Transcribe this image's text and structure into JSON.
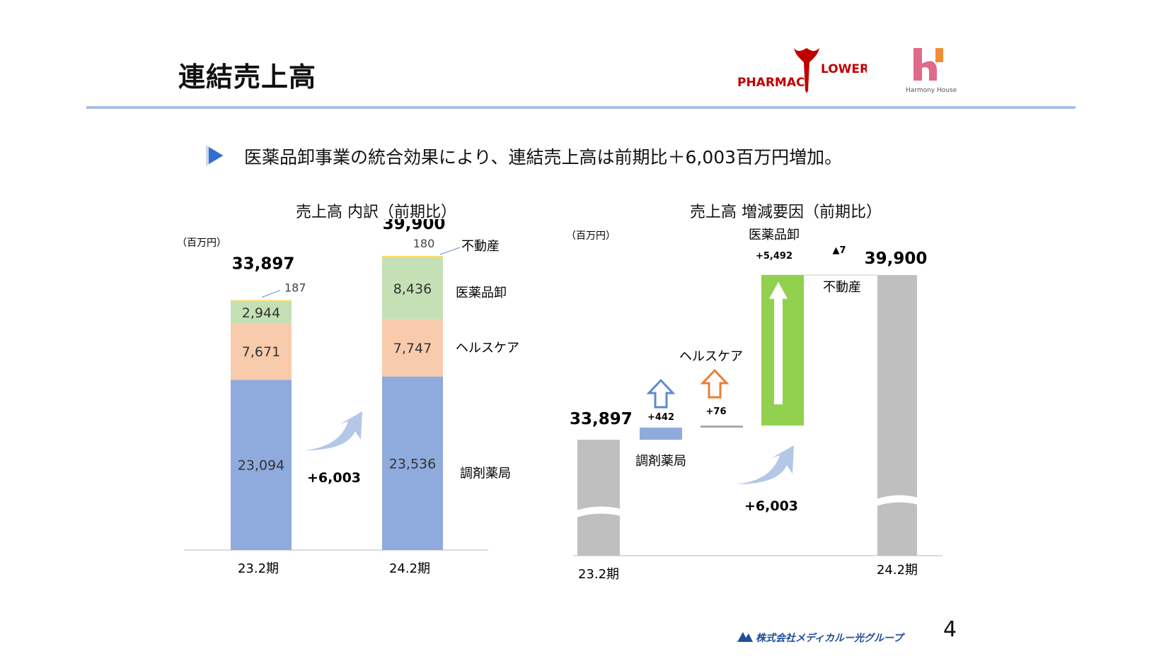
{
  "header": {
    "title": "連結売上高",
    "logo_pharmacy": "PHARMAC",
    "logo_flower": "LOWER",
    "logo_harmony": "Harmony House"
  },
  "lead": "医薬品卸事業の統合効果により、連結売上高は前期比＋6,003百万円増加。",
  "footer": {
    "company": "株式会社メディカルー光グループ",
    "page": "4"
  },
  "colors": {
    "dispensing": "#8faadc",
    "healthcare": "#f8cbad",
    "wholesale": "#c5e0b4",
    "realestate": "#ffd966",
    "wholesale_bar": "#92d050",
    "total": "#bfbfbf",
    "accent_arrow": "#b4c7e7"
  },
  "chart_data": [
    {
      "type": "bar",
      "subtype": "stacked",
      "title": "売上高 内訳（前期比）",
      "unit": "（百万円）",
      "categories": [
        "23.2期",
        "24.2期"
      ],
      "series": [
        {
          "name": "調剤薬局",
          "values": [
            23094,
            23536
          ],
          "labels": [
            "23,094",
            "23,536"
          ]
        },
        {
          "name": "ヘルスケア",
          "values": [
            7671,
            7747
          ],
          "labels": [
            "7,671",
            "7,747"
          ]
        },
        {
          "name": "医薬品卸",
          "values": [
            2944,
            8436
          ],
          "labels": [
            "2,944",
            "8,436"
          ]
        },
        {
          "name": "不動産",
          "values": [
            187,
            180
          ],
          "labels": [
            "187",
            "180"
          ]
        }
      ],
      "totals": [
        33897,
        39900
      ],
      "total_labels": [
        "33,897",
        "39,900"
      ],
      "change_label": "+6,003",
      "ylim": [
        0,
        39900
      ]
    },
    {
      "type": "bar",
      "subtype": "waterfall",
      "title": "売上高 増減要因（前期比）",
      "unit": "（百万円）",
      "start": {
        "category": "23.2期",
        "value": 33897,
        "label": "33,897"
      },
      "end": {
        "category": "24.2期",
        "value": 39900,
        "label": "39,900"
      },
      "steps": [
        {
          "name": "調剤薬局",
          "value": 442,
          "label": "+442"
        },
        {
          "name": "ヘルスケア",
          "value": 76,
          "label": "+76"
        },
        {
          "name": "医薬品卸",
          "value": 5492,
          "label": "+5,492"
        },
        {
          "name": "不動産",
          "value": -7,
          "label": "▲7"
        }
      ],
      "change_label": "+6,003",
      "axis_break": true
    }
  ]
}
